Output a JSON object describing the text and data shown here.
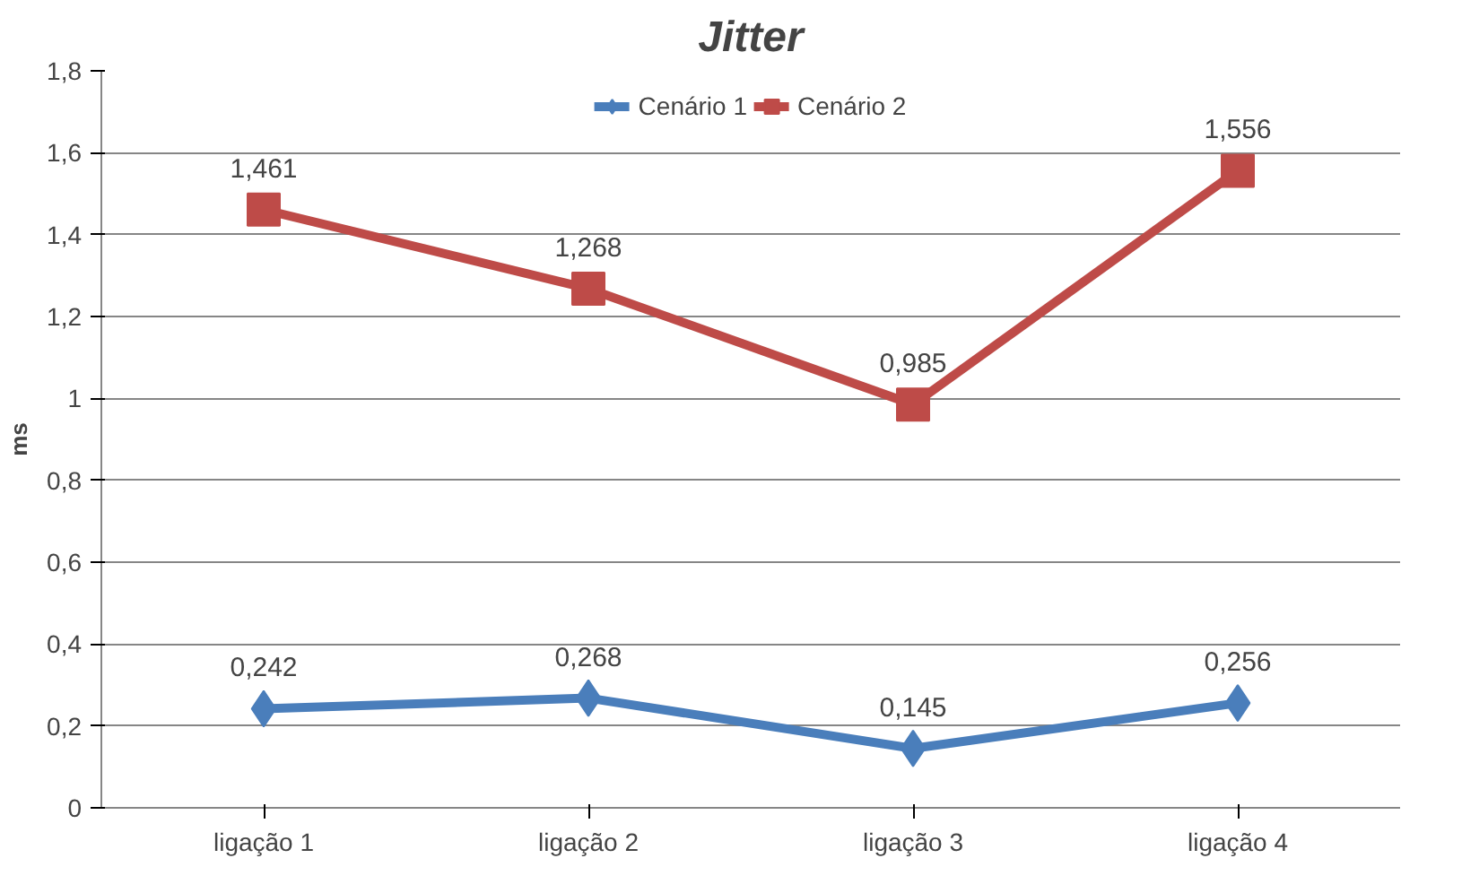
{
  "chart_data": {
    "type": "line",
    "title": "Jitter",
    "ylabel": "ms",
    "categories": [
      "ligação 1",
      "ligação 2",
      "ligação 3",
      "ligação 4"
    ],
    "series": [
      {
        "name": "Cenário 1",
        "color": "#4a7ebb",
        "values": [
          0.242,
          0.268,
          0.145,
          0.256
        ],
        "value_labels": [
          "0,242",
          "0,268",
          "0,145",
          "0,256"
        ],
        "marker": "diamond"
      },
      {
        "name": "Cenário 2",
        "color": "#be4b48",
        "values": [
          1.461,
          1.268,
          0.985,
          1.556
        ],
        "value_labels": [
          "1,461",
          "1,268",
          "0,985",
          "1,556"
        ],
        "marker": "square"
      }
    ],
    "ylim": [
      0,
      1.8
    ],
    "yticks": [
      {
        "value": 0,
        "label": "0"
      },
      {
        "value": 0.2,
        "label": "0,2"
      },
      {
        "value": 0.4,
        "label": "0,4"
      },
      {
        "value": 0.6,
        "label": "0,6"
      },
      {
        "value": 0.8,
        "label": "0,8"
      },
      {
        "value": 1,
        "label": "1"
      },
      {
        "value": 1.2,
        "label": "1,2"
      },
      {
        "value": 1.4,
        "label": "1,4"
      },
      {
        "value": 1.6,
        "label": "1,6"
      },
      {
        "value": 1.8,
        "label": "1,8"
      }
    ],
    "grid": "y",
    "legend": "top"
  }
}
